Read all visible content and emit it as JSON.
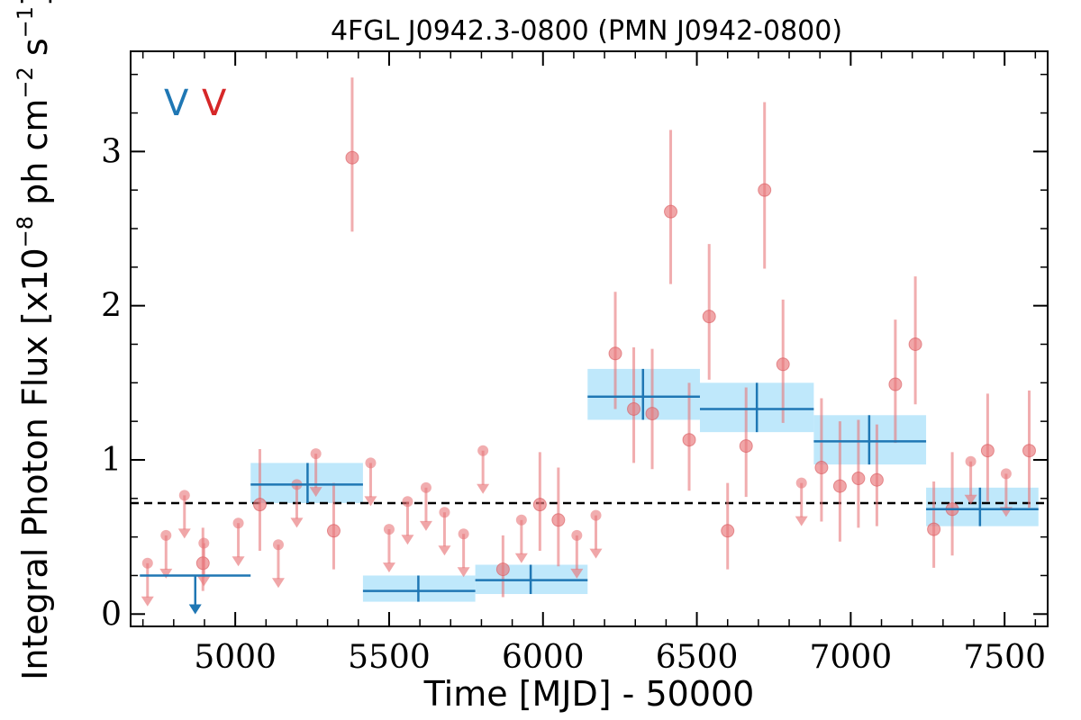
{
  "chart_data": {
    "type": "scatter",
    "title": "4FGL J0942.3-0800 (PMN J0942-0800)",
    "xlabel": "Time [MJD] - 50000",
    "ylabel": "Integral Photon Flux [x10",
    "ylabel_sup1": "−8",
    "ylabel_mid": " ph cm",
    "ylabel_sup2": "−2",
    "ylabel_mid2": " s",
    "ylabel_sup3": "−1",
    "ylabel_end": "]",
    "xlim": [
      4660,
      7640
    ],
    "ylim": [
      -0.08,
      3.65
    ],
    "xticks": [
      5000,
      5500,
      6000,
      6500,
      7000,
      7500
    ],
    "yticks": [
      0,
      1,
      2,
      3
    ],
    "flux_mean": 0.72,
    "legend_markers": [
      {
        "label": "V",
        "color": "#1f77b4"
      },
      {
        "label": "V",
        "color": "#d62728"
      }
    ],
    "short_bin_detections": [
      {
        "x": 4895,
        "y": 0.33,
        "yerr": [
          0.18,
          0.23
        ]
      },
      {
        "x": 5080,
        "y": 0.71,
        "yerr": [
          0.3,
          0.36
        ]
      },
      {
        "x": 5320,
        "y": 0.54,
        "yerr": [
          0.25,
          0.31
        ]
      },
      {
        "x": 5380,
        "y": 2.96,
        "yerr": [
          0.48,
          0.52
        ]
      },
      {
        "x": 5870,
        "y": 0.29,
        "yerr": [
          0.18,
          0.22
        ]
      },
      {
        "x": 5990,
        "y": 0.71,
        "yerr": [
          0.3,
          0.34
        ]
      },
      {
        "x": 6050,
        "y": 0.61,
        "yerr": [
          0.3,
          0.34
        ]
      },
      {
        "x": 6235,
        "y": 1.69,
        "yerr": [
          0.36,
          0.4
        ]
      },
      {
        "x": 6295,
        "y": 1.33,
        "yerr": [
          0.35,
          0.4
        ]
      },
      {
        "x": 6355,
        "y": 1.3,
        "yerr": [
          0.36,
          0.42
        ]
      },
      {
        "x": 6475,
        "y": 1.13,
        "yerr": [
          0.33,
          0.37
        ]
      },
      {
        "x": 6415,
        "y": 2.61,
        "yerr": [
          0.47,
          0.53
        ]
      },
      {
        "x": 6540,
        "y": 1.93,
        "yerr": [
          0.41,
          0.47
        ]
      },
      {
        "x": 6600,
        "y": 0.54,
        "yerr": [
          0.25,
          0.31
        ]
      },
      {
        "x": 6660,
        "y": 1.09,
        "yerr": [
          0.33,
          0.38
        ]
      },
      {
        "x": 6720,
        "y": 2.75,
        "yerr": [
          0.51,
          0.57
        ]
      },
      {
        "x": 6780,
        "y": 1.62,
        "yerr": [
          0.38,
          0.42
        ]
      },
      {
        "x": 6905,
        "y": 0.95,
        "yerr": [
          0.35,
          0.45
        ]
      },
      {
        "x": 6965,
        "y": 0.83,
        "yerr": [
          0.36,
          0.42
        ]
      },
      {
        "x": 7025,
        "y": 0.88,
        "yerr": [
          0.32,
          0.38
        ]
      },
      {
        "x": 7085,
        "y": 0.87,
        "yerr": [
          0.3,
          0.36
        ]
      },
      {
        "x": 7145,
        "y": 1.49,
        "yerr": [
          0.38,
          0.42
        ]
      },
      {
        "x": 7210,
        "y": 1.75,
        "yerr": [
          0.39,
          0.44
        ]
      },
      {
        "x": 7270,
        "y": 0.55,
        "yerr": [
          0.25,
          0.31
        ]
      },
      {
        "x": 7330,
        "y": 0.68,
        "yerr": [
          0.3,
          0.37
        ]
      },
      {
        "x": 7445,
        "y": 1.06,
        "yerr": [
          0.33,
          0.37
        ]
      },
      {
        "x": 7580,
        "y": 1.06,
        "yerr": [
          0.37,
          0.39
        ]
      }
    ],
    "short_bin_upper_limits": [
      {
        "x": 4715,
        "y": 0.33
      },
      {
        "x": 4775,
        "y": 0.51
      },
      {
        "x": 4835,
        "y": 0.77
      },
      {
        "x": 4898,
        "y": 0.46
      },
      {
        "x": 5010,
        "y": 0.59
      },
      {
        "x": 5140,
        "y": 0.45
      },
      {
        "x": 5200,
        "y": 0.84
      },
      {
        "x": 5262,
        "y": 1.04
      },
      {
        "x": 5440,
        "y": 0.98
      },
      {
        "x": 5500,
        "y": 0.55
      },
      {
        "x": 5560,
        "y": 0.73
      },
      {
        "x": 5620,
        "y": 0.82
      },
      {
        "x": 5680,
        "y": 0.66
      },
      {
        "x": 5742,
        "y": 0.52
      },
      {
        "x": 5805,
        "y": 1.06
      },
      {
        "x": 5930,
        "y": 0.61
      },
      {
        "x": 6110,
        "y": 0.51
      },
      {
        "x": 6172,
        "y": 0.64
      },
      {
        "x": 6840,
        "y": 0.85
      },
      {
        "x": 7390,
        "y": 0.99
      },
      {
        "x": 7505,
        "y": 0.91
      }
    ],
    "long_bins": [
      {
        "x": 4870,
        "x0": 4690,
        "x1": 5050,
        "y": 0.25,
        "upper_limit": true
      },
      {
        "x": 5235,
        "x0": 5050,
        "x1": 5415,
        "y": 0.84,
        "lo": 0.72,
        "hi": 0.98
      },
      {
        "x": 5595,
        "x0": 5415,
        "x1": 5780,
        "y": 0.15,
        "lo": 0.08,
        "hi": 0.25
      },
      {
        "x": 5960,
        "x0": 5780,
        "x1": 6145,
        "y": 0.22,
        "lo": 0.13,
        "hi": 0.32
      },
      {
        "x": 6325,
        "x0": 6145,
        "x1": 6510,
        "y": 1.41,
        "lo": 1.26,
        "hi": 1.59
      },
      {
        "x": 6695,
        "x0": 6510,
        "x1": 6880,
        "y": 1.33,
        "lo": 1.18,
        "hi": 1.5
      },
      {
        "x": 7060,
        "x0": 6880,
        "x1": 7245,
        "y": 1.12,
        "lo": 0.97,
        "hi": 1.29
      },
      {
        "x": 7420,
        "x0": 7245,
        "x1": 7610,
        "y": 0.68,
        "lo": 0.57,
        "hi": 0.82
      }
    ],
    "colors": {
      "short_bin": "#e8777a",
      "long_bin": "#1f77b4",
      "long_bin_band": "#bfe8fb",
      "mean_line": "#000000"
    }
  }
}
